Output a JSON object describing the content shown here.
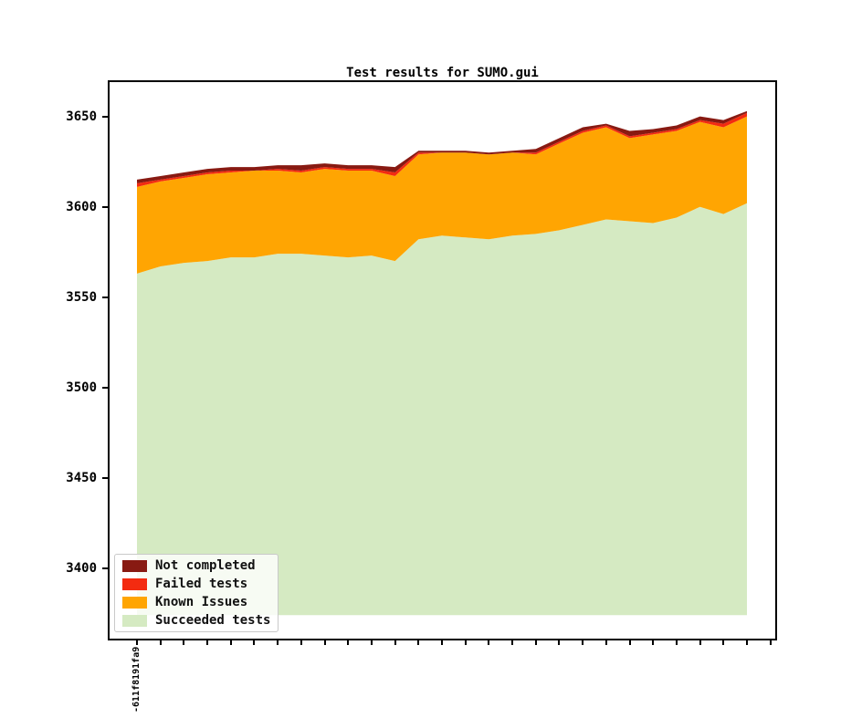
{
  "figure": {
    "title": "Test results for SUMO.gui"
  },
  "y_axis": {
    "tick_values": [
      3650,
      3600,
      3550,
      3500,
      3450,
      3400
    ],
    "tick_labels": [
      "3650",
      "3600",
      "3550",
      "3500",
      "3450",
      "3400"
    ]
  },
  "x_axis": {
    "first_tick_label": "-611f8191fa9",
    "tick_count": 28
  },
  "legend": {
    "items": [
      {
        "label": "Not completed",
        "color": "#881a12"
      },
      {
        "label": "Failed tests",
        "color": "#f32b10"
      },
      {
        "label": "Known Issues",
        "color": "#ffa502"
      },
      {
        "label": "Succeeded tests",
        "color": "#d5eac2"
      }
    ]
  },
  "chart_data": {
    "type": "area",
    "stacked": true,
    "title": "Test results for SUMO.gui",
    "xlabel": "",
    "ylabel": "",
    "grid": false,
    "legend_position": "lower left",
    "ylim": [
      3361,
      3669
    ],
    "fill_baseline": 3374,
    "x_first_label": "-611f8191fa9",
    "x_point_count": 27,
    "series": [
      {
        "name": "Succeeded tests",
        "color": "#d5eac2",
        "values": [
          3563,
          3567,
          3569,
          3570,
          3572,
          3572,
          3574,
          3574,
          3573,
          3572,
          3573,
          3570,
          3582,
          3584,
          3583,
          3582,
          3584,
          3585,
          3587,
          3590,
          3593,
          3592,
          3591,
          3594,
          3600,
          3596,
          3602
        ]
      },
      {
        "name": "Known Issues",
        "color": "#ffa502",
        "values": [
          48,
          47,
          47,
          48,
          47,
          48,
          46,
          45,
          48,
          48,
          47,
          47,
          47,
          46,
          47,
          47,
          46,
          44,
          48,
          51,
          51,
          46,
          49,
          48,
          47,
          48,
          48
        ]
      },
      {
        "name": "Failed tests",
        "color": "#f32b10",
        "values": [
          2,
          1,
          1,
          1,
          1,
          0,
          1,
          1,
          1,
          1,
          1,
          2,
          1,
          0,
          0,
          0,
          0,
          1,
          1,
          1,
          1,
          1,
          1,
          1,
          1,
          2,
          2
        ]
      },
      {
        "name": "Not completed",
        "color": "#881a12",
        "values": [
          2,
          2,
          2,
          2,
          2,
          2,
          2,
          3,
          2,
          2,
          2,
          3,
          1,
          1,
          1,
          1,
          1,
          2,
          2,
          2,
          1,
          3,
          2,
          2,
          2,
          2,
          1
        ]
      }
    ]
  }
}
